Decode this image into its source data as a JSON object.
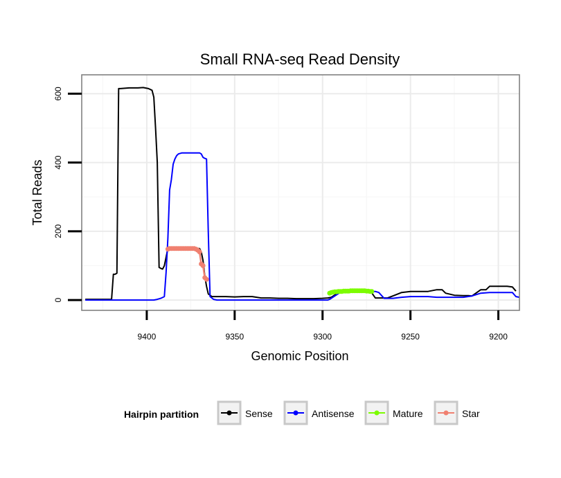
{
  "chart_data": {
    "type": "line",
    "title": "Small RNA-seq Read Density",
    "xlabel": "Genomic Position",
    "ylabel": "Total Reads",
    "xlim": [
      9437,
      9188
    ],
    "x_reversed": true,
    "ylim": [
      -30,
      655
    ],
    "x_ticks": [
      9400,
      9350,
      9300,
      9250,
      9200
    ],
    "x_tick_labels": [
      "9400",
      "9350",
      "9300",
      "9250",
      "9200"
    ],
    "y_ticks": [
      0,
      200,
      400,
      600
    ],
    "y_tick_labels": [
      "0",
      "200",
      "400",
      "600"
    ],
    "grid": true,
    "legend": {
      "title": "Hairpin partition",
      "position": "bottom",
      "entries": [
        "Sense",
        "Antisense",
        "Mature",
        "Star"
      ]
    },
    "series": [
      {
        "name": "Sense",
        "color": "#000000",
        "style": "line",
        "x": [
          9435,
          9420,
          9419,
          9418,
          9417,
          9416,
          9415,
          9410,
          9405,
          9402,
          9399,
          9397,
          9396,
          9395,
          9394,
          9393,
          9392,
          9391,
          9390,
          9388,
          9387,
          9386,
          9385,
          9384,
          9383,
          9380,
          9375,
          9372,
          9370,
          9369,
          9368,
          9367,
          9366,
          9365,
          9363,
          9360,
          9355,
          9350,
          9345,
          9340,
          9335,
          9330,
          9325,
          9320,
          9315,
          9310,
          9305,
          9300,
          9297,
          9295,
          9290,
          9285,
          9280,
          9275,
          9273,
          9270,
          9265,
          9263,
          9260,
          9257,
          9255,
          9250,
          9245,
          9242,
          9240,
          9237,
          9235,
          9232,
          9230,
          9225,
          9220,
          9217,
          9215,
          9210,
          9207,
          9205,
          9200,
          9195,
          9192,
          9190
        ],
        "y": [
          2,
          2,
          75,
          75,
          78,
          615,
          615,
          617,
          617,
          618,
          615,
          610,
          590,
          500,
          400,
          95,
          92,
          90,
          100,
          150,
          150,
          150,
          150,
          150,
          150,
          150,
          150,
          150,
          150,
          140,
          115,
          70,
          40,
          18,
          10,
          10,
          10,
          9,
          10,
          10,
          6,
          6,
          5,
          5,
          4,
          4,
          4,
          5,
          6,
          8,
          25,
          28,
          28,
          28,
          28,
          6,
          6,
          6,
          12,
          18,
          22,
          25,
          25,
          25,
          25,
          28,
          30,
          30,
          20,
          14,
          13,
          13,
          12,
          30,
          30,
          40,
          40,
          40,
          38,
          26
        ]
      },
      {
        "name": "Antisense",
        "color": "#0000ff",
        "style": "line",
        "x": [
          9435,
          9420,
          9410,
          9400,
          9396,
          9394,
          9392,
          9390,
          9389,
          9388,
          9387,
          9386,
          9385,
          9384,
          9383,
          9382,
          9380,
          9375,
          9372,
          9370,
          9369,
          9368,
          9367,
          9366,
          9365,
          9364,
          9362,
          9360,
          9350,
          9340,
          9330,
          9320,
          9310,
          9300,
          9297,
          9296,
          9290,
          9285,
          9275,
          9273,
          9270,
          9268,
          9265,
          9260,
          9255,
          9250,
          9245,
          9240,
          9235,
          9230,
          9225,
          9220,
          9215,
          9210,
          9205,
          9200,
          9195,
          9192,
          9190,
          9188
        ],
        "y": [
          0,
          0,
          0,
          0,
          0,
          2,
          5,
          10,
          80,
          180,
          320,
          350,
          395,
          410,
          420,
          425,
          428,
          428,
          428,
          428,
          425,
          415,
          412,
          410,
          200,
          10,
          2,
          0,
          0,
          0,
          0,
          0,
          0,
          0,
          0,
          2,
          22,
          25,
          25,
          25,
          25,
          22,
          5,
          5,
          8,
          10,
          10,
          10,
          8,
          8,
          8,
          8,
          12,
          20,
          22,
          22,
          22,
          22,
          10,
          8
        ]
      },
      {
        "name": "Mature",
        "color": "#7cfc00",
        "style": "points",
        "x": [
          9296,
          9295,
          9294,
          9293,
          9292,
          9291,
          9290,
          9289,
          9288,
          9287,
          9286,
          9285,
          9284,
          9283,
          9282,
          9281,
          9280,
          9279,
          9278,
          9277,
          9276,
          9275,
          9274,
          9273,
          9272
        ],
        "y": [
          20,
          22,
          23,
          24,
          24,
          25,
          25,
          25,
          26,
          26,
          26,
          26,
          27,
          27,
          27,
          27,
          27,
          27,
          27,
          27,
          27,
          26,
          26,
          25,
          25
        ]
      },
      {
        "name": "Star",
        "color": "#f08070",
        "style": "points",
        "x": [
          9388,
          9387,
          9386,
          9385,
          9384,
          9383,
          9382,
          9381,
          9380,
          9379,
          9378,
          9377,
          9376,
          9375,
          9374,
          9373,
          9372,
          9371,
          9370,
          9369,
          9368,
          9367,
          9366
        ],
        "y": [
          148,
          150,
          150,
          150,
          150,
          150,
          150,
          150,
          150,
          150,
          150,
          150,
          150,
          150,
          150,
          150,
          148,
          145,
          140,
          105,
          100,
          65,
          60
        ]
      }
    ]
  }
}
